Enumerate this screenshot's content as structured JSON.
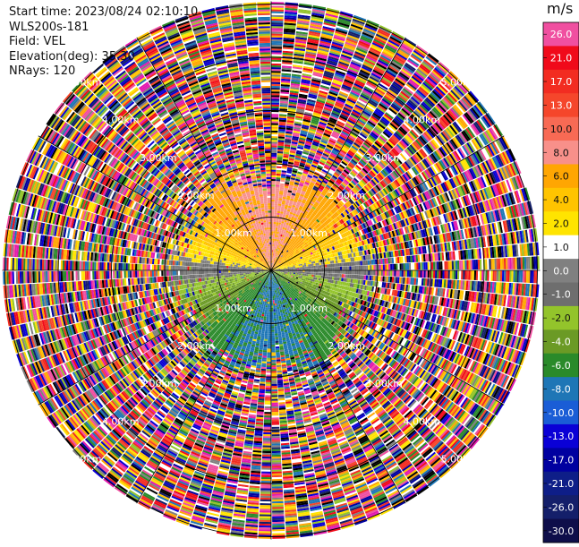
{
  "header": {
    "start_time": "Start time: 2023/08/24 02:10:10",
    "instrument": "WLS200s-181",
    "field": "Field: VEL",
    "elevation": "Elevation(deg): 35.30",
    "nrays": "NRays: 120"
  },
  "chart_data": {
    "type": "heatmap",
    "subtype": "polar-ppi",
    "nrays": 120,
    "range_rings": {
      "labels": [
        "1.00km",
        "2.00km",
        "3.00km",
        "4.00km",
        "5.00km"
      ],
      "values_km": [
        1,
        2,
        3,
        4,
        5
      ]
    },
    "colorbar": {
      "title": "m/s",
      "tick_labels": [
        "26.0",
        "21.0",
        "17.0",
        "13.0",
        "10.0",
        "8.0",
        "6.0",
        "4.0",
        "2.0",
        "1.0",
        "0.0",
        "-1.0",
        "-2.0",
        "-4.0",
        "-6.0",
        "-8.0",
        "-10.0",
        "-13.0",
        "-17.0",
        "-21.0",
        "-26.0",
        "-30.0"
      ],
      "colors": [
        "#f04fa0",
        "#f00a1a",
        "#f22c21",
        "#f5462b",
        "#f86a54",
        "#f8908a",
        "#ffa602",
        "#ffc400",
        "#ffe400",
        "#ffffff",
        "#808080",
        "#6e6e6e",
        "#93c42b",
        "#6b9a25",
        "#2a8a2a",
        "#1e76b6",
        "#1a5dd6",
        "#0a00d6",
        "#0000a0",
        "#0e1e88",
        "#141f6a",
        "#0e0e4a"
      ]
    },
    "pattern": "Near-range (< ~2 km) coherent velocities: positive (yellow/orange) toward north, negative (green) toward south, near zero (gray) along east-west; beyond ~2 km noisy multicolored returns."
  }
}
